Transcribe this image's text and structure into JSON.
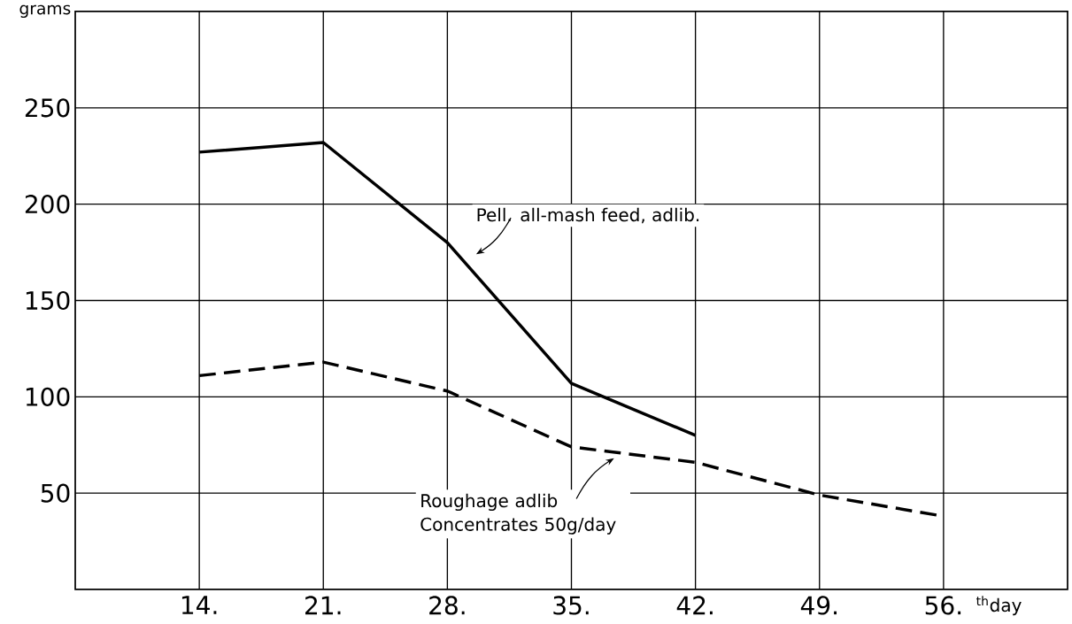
{
  "chart_data": {
    "type": "line",
    "ylabel": "grams",
    "xlabel": "$^{th}$day",
    "x": [
      14,
      21,
      28,
      35,
      42,
      49,
      56
    ],
    "xlim": [
      7,
      63
    ],
    "ylim": [
      0,
      300
    ],
    "xticks": [
      {
        "value": 14,
        "label": "14."
      },
      {
        "value": 21,
        "label": "21."
      },
      {
        "value": 28,
        "label": "28."
      },
      {
        "value": 35,
        "label": "35."
      },
      {
        "value": 42,
        "label": "42."
      },
      {
        "value": 49,
        "label": "49."
      },
      {
        "value": 56,
        "label": "56."
      }
    ],
    "yticks": [
      50,
      100,
      150,
      200,
      250
    ],
    "grid": true,
    "marker": "none",
    "annotations": [
      "Pell. all-mash feed, adlib.",
      "Roughage adlib Concentrates 50g/day"
    ],
    "series": [
      {
        "color": "#000000",
        "line_style": "solid",
        "values": [
          227,
          232,
          180,
          107,
          80,
          null,
          null
        ]
      },
      {
        "color": "#000000",
        "line_style": "dashed",
        "values": [
          111,
          118,
          103,
          74,
          66,
          49,
          38
        ]
      }
    ]
  }
}
